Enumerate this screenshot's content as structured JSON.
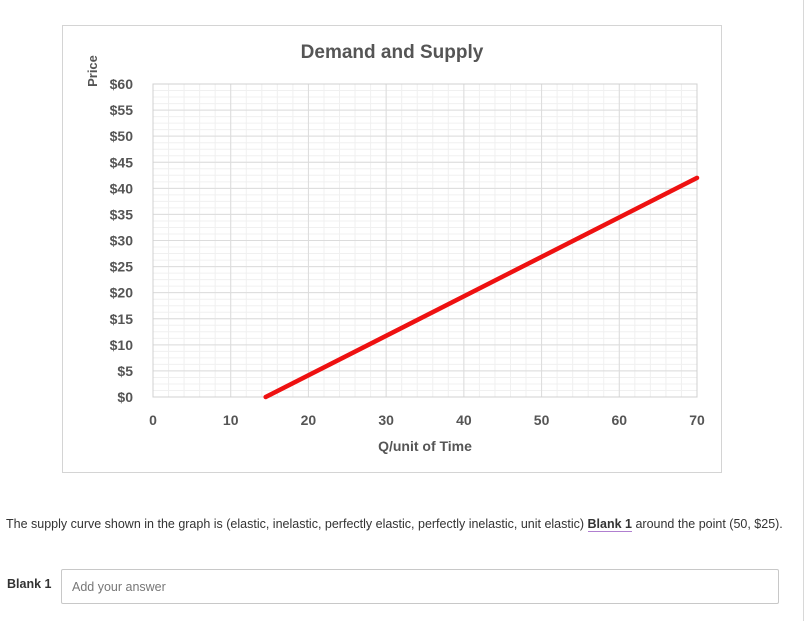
{
  "chart_data": {
    "type": "line",
    "title": "Demand and Supply",
    "xlabel": "Q/unit of Time",
    "ylabel": "Price",
    "xlim": [
      0,
      70
    ],
    "ylim": [
      0,
      60
    ],
    "x_ticks": [
      "0",
      "10",
      "20",
      "30",
      "40",
      "50",
      "60",
      "70"
    ],
    "y_ticks": [
      "$0",
      "$5",
      "$10",
      "$15",
      "$20",
      "$25",
      "$30",
      "$35",
      "$40",
      "$45",
      "$50",
      "$55",
      "$60"
    ],
    "grid": true,
    "series": [
      {
        "color": "#ee1111",
        "points": [
          [
            14.5,
            0
          ],
          [
            70,
            42
          ]
        ]
      }
    ]
  },
  "question": {
    "text_before": "The supply curve shown in the graph is (elastic, inelastic, perfectly elastic, perfectly inelastic, unit elastic) ",
    "blank_ref": "Blank 1",
    "text_after": " around the point (50, $25)."
  },
  "answer": {
    "label": "Blank 1",
    "placeholder": "Add your answer",
    "value": ""
  }
}
